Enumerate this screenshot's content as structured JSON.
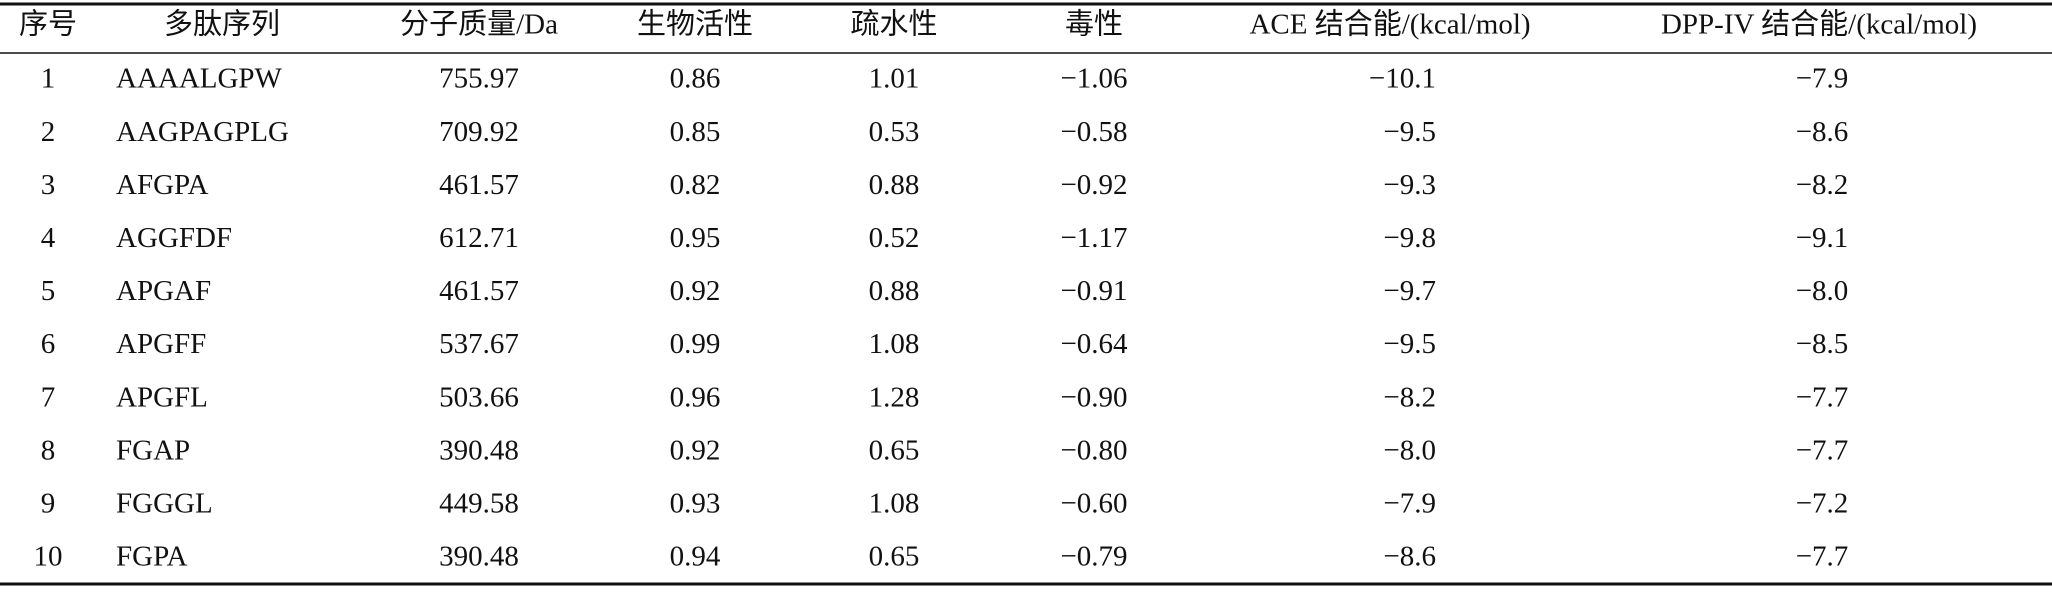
{
  "table": {
    "headers": [
      "序号",
      "多肽序列",
      "分子质量/Da",
      "生物活性",
      "疏水性",
      "毒性",
      "ACE 结合能/(kcal/mol)",
      "DPP-IV 结合能/(kcal/mol)"
    ],
    "rows": [
      [
        "1",
        "AAAALGPW",
        "755.97",
        "0.86",
        "1.01",
        "−1.06",
        "−10.1",
        "−7.9"
      ],
      [
        "2",
        "AAGPAGPLG",
        "709.92",
        "0.85",
        "0.53",
        "−0.58",
        "−9.5",
        "−8.6"
      ],
      [
        "3",
        "AFGPA",
        "461.57",
        "0.82",
        "0.88",
        "−0.92",
        "−9.3",
        "−8.2"
      ],
      [
        "4",
        "AGGFDF",
        "612.71",
        "0.95",
        "0.52",
        "−1.17",
        "−9.8",
        "−9.1"
      ],
      [
        "5",
        "APGAF",
        "461.57",
        "0.92",
        "0.88",
        "−0.91",
        "−9.7",
        "−8.0"
      ],
      [
        "6",
        "APGFF",
        "537.67",
        "0.99",
        "1.08",
        "−0.64",
        "−9.5",
        "−8.5"
      ],
      [
        "7",
        "APGFL",
        "503.66",
        "0.96",
        "1.28",
        "−0.90",
        "−8.2",
        "−7.7"
      ],
      [
        "8",
        "FGAP",
        "390.48",
        "0.92",
        "0.65",
        "−0.80",
        "−8.0",
        "−7.7"
      ],
      [
        "9",
        "FGGGL",
        "449.58",
        "0.93",
        "1.08",
        "−0.60",
        "−7.9",
        "−7.2"
      ],
      [
        "10",
        "FGPA",
        "390.48",
        "0.94",
        "0.65",
        "−0.79",
        "−8.6",
        "−7.7"
      ]
    ]
  }
}
